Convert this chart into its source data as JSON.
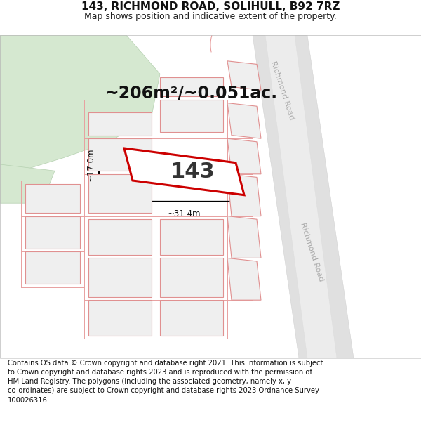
{
  "title": "143, RICHMOND ROAD, SOLIHULL, B92 7RZ",
  "subtitle": "Map shows position and indicative extent of the property.",
  "area_text": "~206m²/~0.051ac.",
  "number_label": "143",
  "dim_width": "~31.4m",
  "dim_height": "~17.0m",
  "road_label": "Richmond Road",
  "footer_text": "Contains OS data © Crown copyright and database right 2021. This information is subject\nto Crown copyright and database rights 2023 and is reproduced with the permission of\nHM Land Registry. The polygons (including the associated geometry, namely x, y\nco-ordinates) are subject to Crown copyright and database rights 2023 Ordnance Survey\n100026316.",
  "map_bg": "#f7f7f4",
  "plot_fill": "#ffffff",
  "plot_edge": "#cc0000",
  "building_fill": "#efefef",
  "building_edge": "#e09090",
  "road_fill": "#e0e0e0",
  "green_fill": "#d5e8d0",
  "green_edge": "#b5d0b0",
  "road_line_color": "#e8a0a0",
  "road_text_color": "#aaaaaa",
  "title_fontsize": 11,
  "subtitle_fontsize": 9,
  "area_fontsize": 18,
  "number_fontsize": 22,
  "footer_fontsize": 7.2
}
